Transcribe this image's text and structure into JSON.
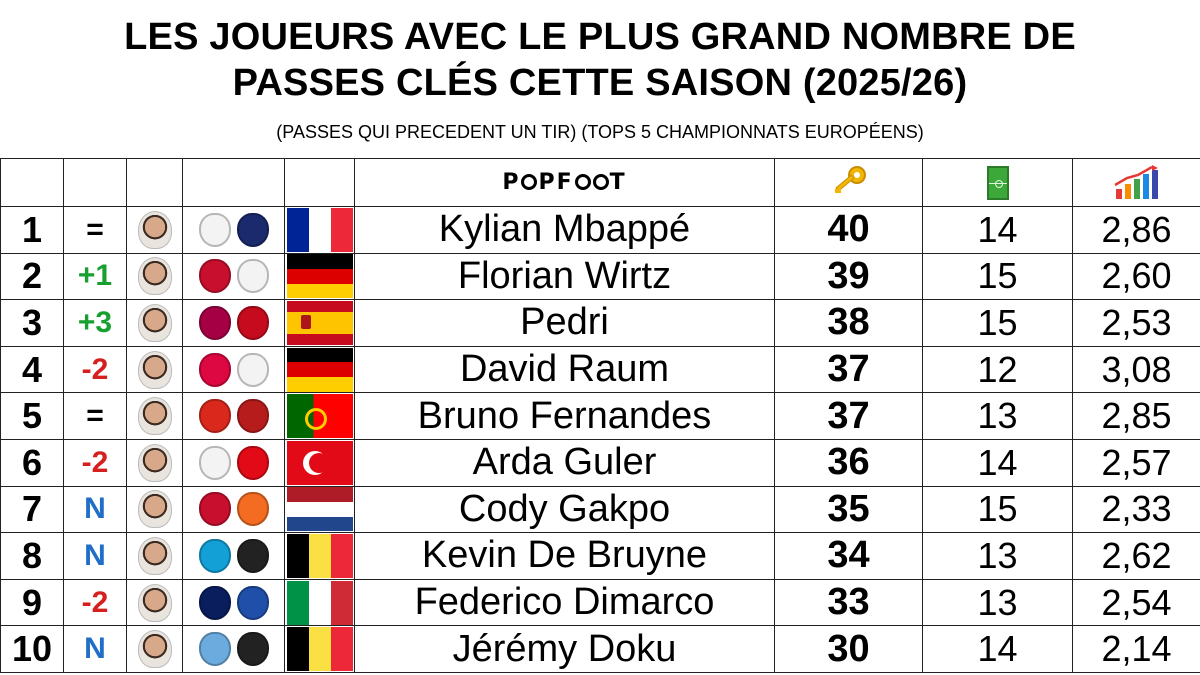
{
  "title_line1": "LES JOUEURS AVEC LE PLUS GRAND NOMBRE DE",
  "title_line2": "PASSES CLÉS CETTE SAISON (2025/26)",
  "subtitle": "(PASSES QUI PRECEDENT UN TIR) (TOPS 5 CHAMPIONNATS EUROPÉENS)",
  "brand_logo": "POPFOOT",
  "header_icons": [
    "key-icon",
    "pitch-icon",
    "bar-chart-icon"
  ],
  "colors": {
    "green": "#17a02f",
    "red": "#d61f1f",
    "blue": "#1f6ec7"
  },
  "players": [
    {
      "rank": "1",
      "change": "=",
      "change_color": "#000000",
      "name": "Kylian Mbappé",
      "key_passes": "40",
      "matches": "14",
      "average": "2,86",
      "club": "real-madrid",
      "nation": "france",
      "club_color": "#f3f3f3",
      "nation_color": "#1a2a6c"
    },
    {
      "rank": "2",
      "change": "+1",
      "change_color": "#17a02f",
      "name": "Florian Wirtz",
      "key_passes": "39",
      "matches": "15",
      "average": "2,60",
      "club": "liverpool",
      "nation": "germany",
      "club_color": "#c8102e",
      "nation_color": "#f3f3f3"
    },
    {
      "rank": "3",
      "change": "+3",
      "change_color": "#17a02f",
      "name": "Pedri",
      "key_passes": "38",
      "matches": "15",
      "average": "2,53",
      "club": "barcelona",
      "nation": "spain",
      "club_color": "#a50044",
      "nation_color": "#c60b1e"
    },
    {
      "rank": "4",
      "change": "-2",
      "change_color": "#d61f1f",
      "name": "David Raum",
      "key_passes": "37",
      "matches": "12",
      "average": "3,08",
      "club": "rb-leipzig",
      "nation": "germany",
      "club_color": "#dd0741",
      "nation_color": "#f3f3f3"
    },
    {
      "rank": "5",
      "change": "=",
      "change_color": "#000000",
      "name": "Bruno Fernandes",
      "key_passes": "37",
      "matches": "13",
      "average": "2,85",
      "club": "manchester-united",
      "nation": "portugal",
      "club_color": "#da291c",
      "nation_color": "#b71c1c"
    },
    {
      "rank": "6",
      "change": "-2",
      "change_color": "#d61f1f",
      "name": "Arda Guler",
      "key_passes": "36",
      "matches": "14",
      "average": "2,57",
      "club": "real-madrid",
      "nation": "turkey",
      "club_color": "#f3f3f3",
      "nation_color": "#e30a17"
    },
    {
      "rank": "7",
      "change": "N",
      "change_color": "#1f6ec7",
      "name": "Cody Gakpo",
      "key_passes": "35",
      "matches": "15",
      "average": "2,33",
      "club": "liverpool",
      "nation": "netherlands",
      "club_color": "#c8102e",
      "nation_color": "#f36c21"
    },
    {
      "rank": "8",
      "change": "N",
      "change_color": "#1f6ec7",
      "name": "Kevin De Bruyne",
      "key_passes": "34",
      "matches": "13",
      "average": "2,62",
      "club": "napoli",
      "nation": "belgium",
      "club_color": "#12a0d7",
      "nation_color": "#222222"
    },
    {
      "rank": "9",
      "change": "-2",
      "change_color": "#d61f1f",
      "name": "Federico Dimarco",
      "key_passes": "33",
      "matches": "13",
      "average": "2,54",
      "club": "inter",
      "nation": "italy",
      "club_color": "#0a1e5e",
      "nation_color": "#1f4fa8"
    },
    {
      "rank": "10",
      "change": "N",
      "change_color": "#1f6ec7",
      "name": "Jérémy Doku",
      "key_passes": "30",
      "matches": "14",
      "average": "2,14",
      "club": "manchester-city",
      "nation": "belgium",
      "club_color": "#6cabdd",
      "nation_color": "#222222"
    }
  ]
}
